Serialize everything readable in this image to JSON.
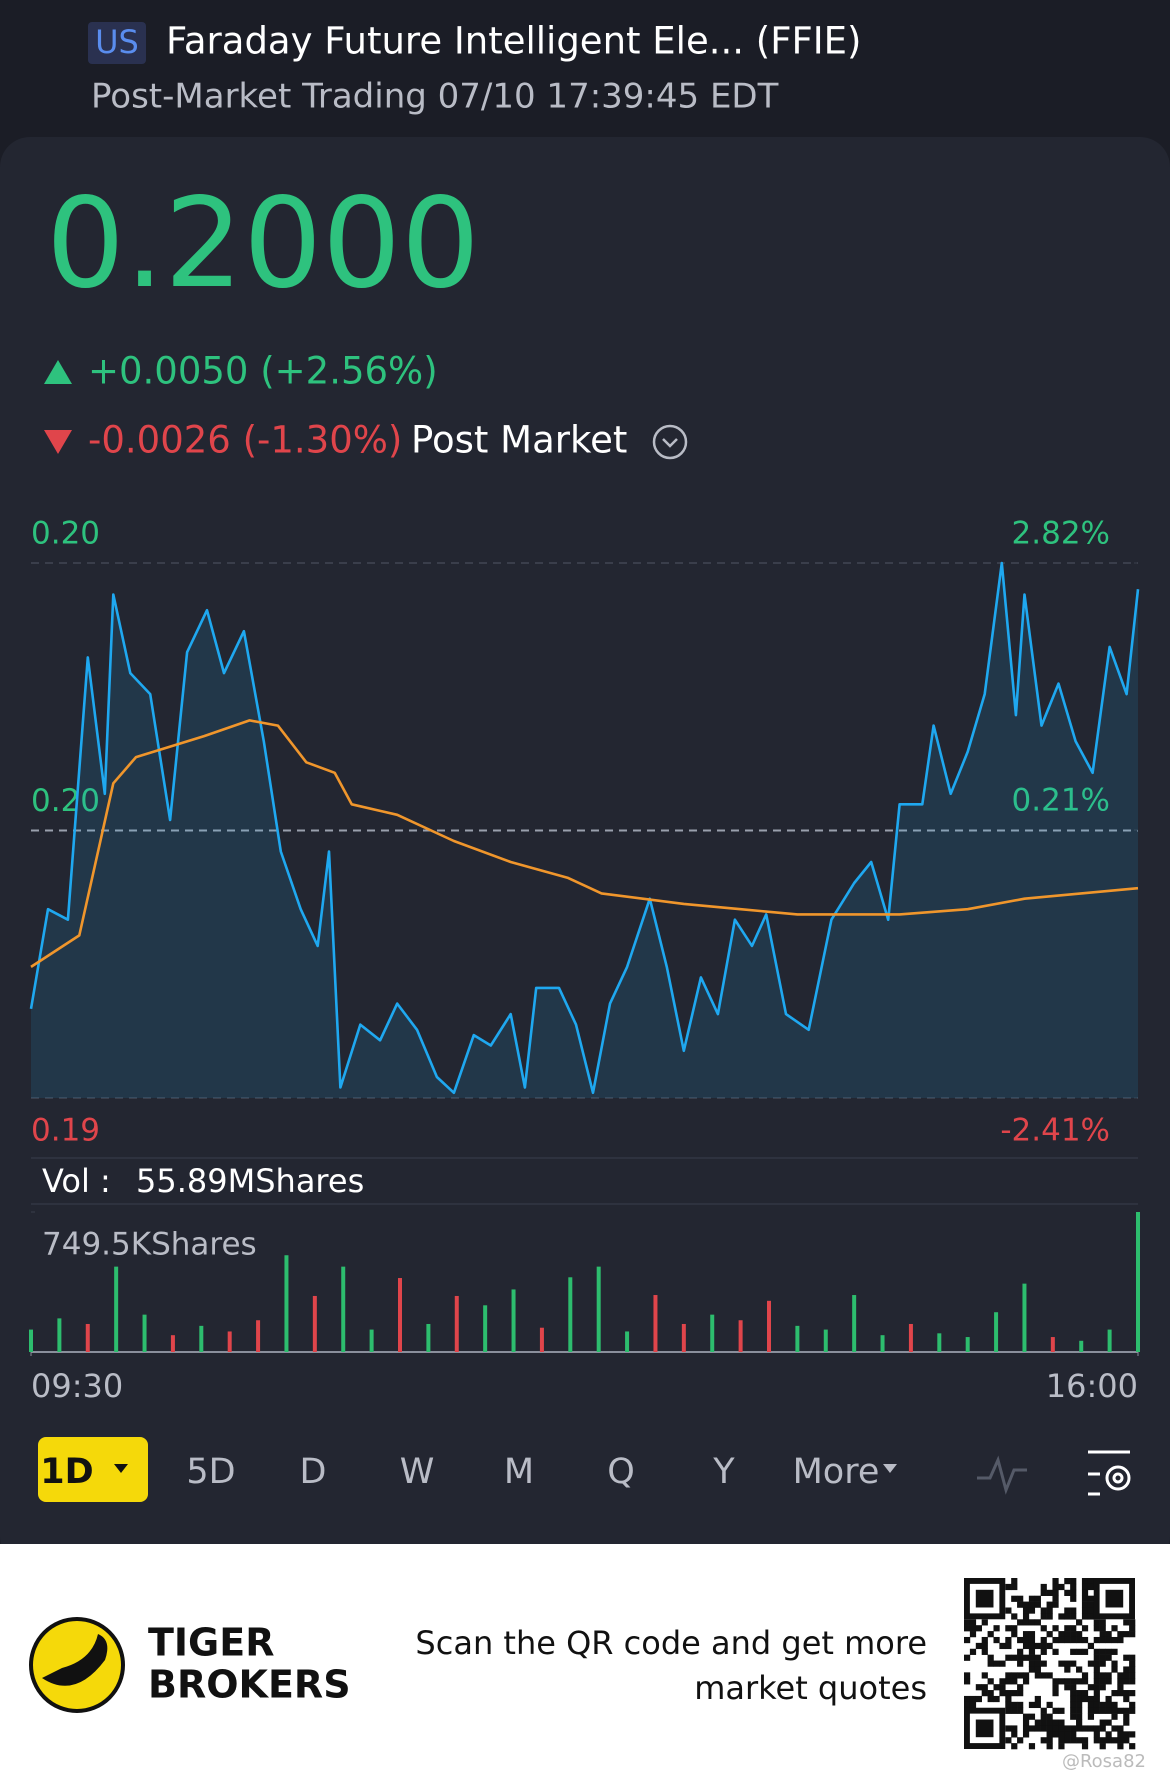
{
  "header": {
    "market": "US",
    "title": "Faraday Future Intelligent Ele... (FFIE)",
    "subtitle": "Post-Market Trading 07/10 17:39:45 EDT"
  },
  "quote": {
    "price": "0.2000",
    "change": "+0.0050 (+2.56%)",
    "post_change": "-0.0026 (-1.30%)",
    "post_label": "Post Market"
  },
  "chart_data": [
    {
      "type": "line",
      "xlim": [
        0,
        390
      ],
      "ylim": [
        0.1903,
        0.2005
      ],
      "yticks": [
        {
          "value": 0.2005,
          "label": "0.20"
        },
        {
          "value": 0.1954,
          "label": "0.20"
        },
        {
          "value": 0.1903,
          "label": "0.19"
        }
      ],
      "y2lim": [
        -2.41,
        2.82
      ],
      "y2ticks": [
        {
          "value": 2.82,
          "label": "2.82%"
        },
        {
          "value": 0.21,
          "label": "0.21%"
        },
        {
          "value": -2.41,
          "label": "-2.41%"
        }
      ],
      "series": [
        {
          "color": "#1fa8f0",
          "x": [
            0,
            6,
            13,
            20,
            26,
            29,
            35,
            42,
            49,
            55,
            62,
            68,
            75,
            82,
            88,
            95,
            101,
            105,
            109,
            116,
            123,
            129,
            136,
            143,
            149,
            156,
            162,
            169,
            174,
            178,
            186,
            192,
            198,
            204,
            210,
            218,
            224,
            230,
            236,
            242,
            248,
            254,
            259,
            266,
            274,
            282,
            290,
            296,
            302,
            306,
            314,
            318,
            324,
            330,
            336,
            342,
            347,
            350,
            356,
            362,
            368,
            374,
            380,
            386,
            390
          ],
          "values": [
            0.192,
            0.1939,
            0.1937,
            0.1987,
            0.1961,
            0.1999,
            0.1984,
            0.198,
            0.1956,
            0.1988,
            0.1996,
            0.1984,
            0.1992,
            0.1971,
            0.195,
            0.1939,
            0.1932,
            0.195,
            0.1905,
            0.1917,
            0.1914,
            0.1921,
            0.1916,
            0.1907,
            0.1904,
            0.1915,
            0.1913,
            0.1919,
            0.1905,
            0.1924,
            0.1924,
            0.1917,
            0.1904,
            0.1921,
            0.1928,
            0.1941,
            0.1928,
            0.1912,
            0.1926,
            0.1919,
            0.1937,
            0.1932,
            0.1938,
            0.1919,
            0.1916,
            0.1937,
            0.1944,
            0.1948,
            0.1937,
            0.1959,
            0.1959,
            0.1974,
            0.1961,
            0.1969,
            0.198,
            0.2005,
            0.1976,
            0.1999,
            0.1974,
            0.1982,
            0.1971,
            0.1965,
            0.1989,
            0.198,
            0.2
          ]
        },
        {
          "color": "#f0962c",
          "x": [
            0,
            17,
            29,
            37,
            49,
            61,
            77,
            87,
            97,
            107,
            113,
            129,
            149,
            169,
            189,
            201,
            230,
            250,
            270,
            290,
            306,
            330,
            350,
            370,
            390
          ],
          "values": [
            0.1928,
            0.1934,
            0.1963,
            0.1968,
            0.197,
            0.1972,
            0.1975,
            0.1974,
            0.1967,
            0.1965,
            0.1959,
            0.1957,
            0.1952,
            0.1948,
            0.1945,
            0.1942,
            0.194,
            0.1939,
            0.1938,
            0.1938,
            0.1938,
            0.1939,
            0.1941,
            0.1942,
            0.1943
          ]
        }
      ]
    },
    {
      "type": "bar",
      "label": "Vol :",
      "total": "55.89MShares",
      "xlim": [
        0,
        390
      ],
      "xticks": [
        {
          "value": 0,
          "label": "09:30"
        },
        {
          "value": 390,
          "label": "16:00"
        }
      ],
      "ylim": [
        0,
        749.5
      ],
      "yticks": [
        {
          "value": 749.5,
          "label": "749.5KShares"
        }
      ],
      "x": [
        0,
        10,
        20,
        30,
        40,
        50,
        60,
        70,
        80,
        90,
        100,
        110,
        120,
        130,
        140,
        150,
        160,
        170,
        180,
        190,
        200,
        210,
        220,
        230,
        240,
        250,
        260,
        270,
        280,
        290,
        300,
        310,
        320,
        330,
        340,
        350,
        360,
        370,
        380,
        390
      ],
      "values": [
        120,
        180,
        150,
        457,
        200,
        90,
        140,
        110,
        170,
        518,
        300,
        457,
        120,
        396,
        150,
        300,
        250,
        335,
        130,
        400,
        457,
        110,
        305,
        150,
        200,
        170,
        274,
        140,
        120,
        305,
        90,
        150,
        100,
        80,
        213,
        366,
        80,
        60,
        120,
        749.5
      ],
      "colors": [
        "#2dbd6e",
        "#2dbd6e",
        "#e0454b",
        "#2dbd6e",
        "#2dbd6e",
        "#e0454b",
        "#2dbd6e",
        "#e0454b",
        "#e0454b",
        "#2dbd6e",
        "#e0454b",
        "#2dbd6e",
        "#2dbd6e",
        "#e0454b",
        "#2dbd6e",
        "#e0454b",
        "#2dbd6e",
        "#2dbd6e",
        "#e0454b",
        "#2dbd6e",
        "#2dbd6e",
        "#2dbd6e",
        "#e0454b",
        "#e0454b",
        "#2dbd6e",
        "#e0454b",
        "#e0454b",
        "#2dbd6e",
        "#2dbd6e",
        "#2dbd6e",
        "#2dbd6e",
        "#e0454b",
        "#2dbd6e",
        "#2dbd6e",
        "#2dbd6e",
        "#2dbd6e",
        "#e0454b",
        "#2dbd6e",
        "#2dbd6e",
        "#2dbd6e"
      ]
    }
  ],
  "tabs": [
    "1D",
    "5D",
    "D",
    "W",
    "M",
    "Q",
    "Y",
    "More"
  ],
  "footer": {
    "brand": [
      "TIGER",
      "BROKERS"
    ],
    "cta": [
      "Scan the QR code and get more",
      "market quotes"
    ],
    "watermark": "@Rosa82"
  }
}
